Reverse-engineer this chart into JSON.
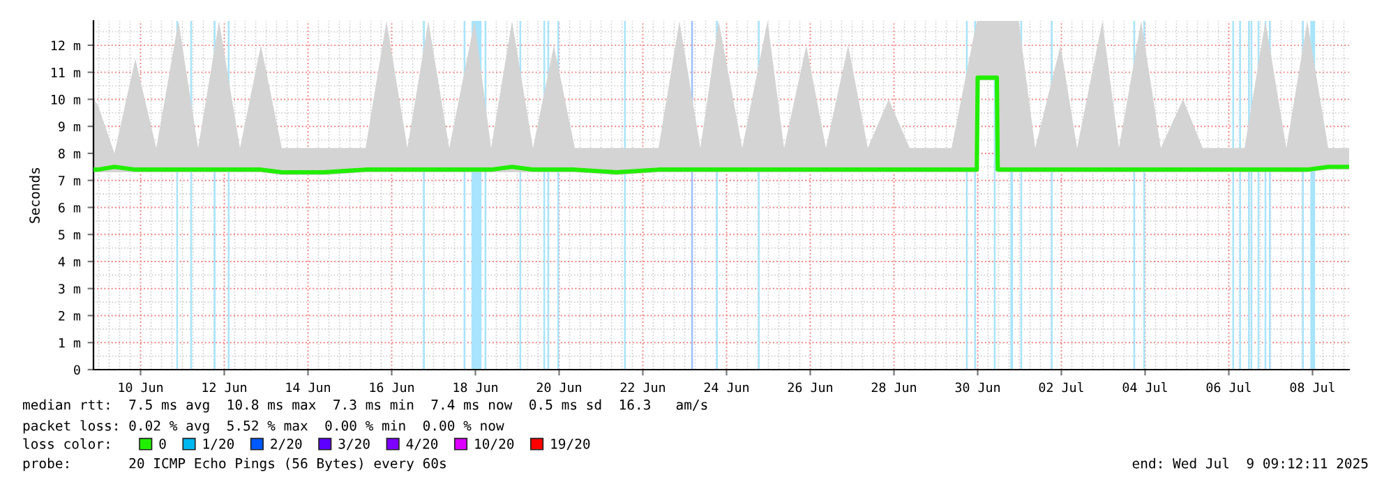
{
  "chart_data": {
    "type": "line",
    "ylabel": "Seconds",
    "legend_title": "loss color:",
    "legend": "bottom",
    "grid": true,
    "line_style": "solid",
    "marker": "none",
    "xlim": [
      "2025-06-08T21:00",
      "2025-07-08T21:00"
    ],
    "xticks": [
      {
        "value": "2025-06-10",
        "label": "10 Jun"
      },
      {
        "value": "2025-06-12",
        "label": "12 Jun"
      },
      {
        "value": "2025-06-14",
        "label": "14 Jun"
      },
      {
        "value": "2025-06-16",
        "label": "16 Jun"
      },
      {
        "value": "2025-06-18",
        "label": "18 Jun"
      },
      {
        "value": "2025-06-20",
        "label": "20 Jun"
      },
      {
        "value": "2025-06-22",
        "label": "22 Jun"
      },
      {
        "value": "2025-06-24",
        "label": "24 Jun"
      },
      {
        "value": "2025-06-26",
        "label": "26 Jun"
      },
      {
        "value": "2025-06-28",
        "label": "28 Jun"
      },
      {
        "value": "2025-06-30",
        "label": "30 Jun"
      },
      {
        "value": "2025-07-02",
        "label": "02 Jul"
      },
      {
        "value": "2025-07-04",
        "label": "04 Jul"
      },
      {
        "value": "2025-07-06",
        "label": "06 Jul"
      },
      {
        "value": "2025-07-08",
        "label": "08 Jul"
      }
    ],
    "ylim": [
      0,
      12.9
    ],
    "yticks": [
      0,
      {
        "value": 1,
        "label": "1 m"
      },
      {
        "value": 2,
        "label": "2 m"
      },
      {
        "value": 3,
        "label": "3 m"
      },
      {
        "value": 4,
        "label": "4 m"
      },
      {
        "value": 5,
        "label": "5 m"
      },
      {
        "value": 6,
        "label": "6 m"
      },
      {
        "value": 7,
        "label": "7 m"
      },
      {
        "value": 8,
        "label": "8 m"
      },
      {
        "value": 9,
        "label": "9 m"
      },
      {
        "value": 10,
        "label": "10 m"
      },
      {
        "value": 11,
        "label": "11 m"
      },
      {
        "value": 12,
        "label": "12 m"
      }
    ],
    "series": [
      {
        "name": "0",
        "color": "#22ee00",
        "x": [
          "2025-06-08T21:00",
          "2025-06-08T23:30",
          "2025-06-09T09:00",
          "2025-06-09T21:00",
          "2025-06-10T09:00",
          "2025-06-10T21:45",
          "2025-06-11T09:00",
          "2025-06-11T21:00",
          "2025-06-12T09:00",
          "2025-06-12T21:00",
          "2025-06-13T09:00",
          "2025-06-14T09:00",
          "2025-06-15T09:00",
          "2025-06-15T21:00",
          "2025-06-16T09:00",
          "2025-06-16T21:00",
          "2025-06-17T09:00",
          "2025-06-17T23:30",
          "2025-06-18T09:00",
          "2025-06-18T21:00",
          "2025-06-19T09:00",
          "2025-06-19T21:00",
          "2025-06-20T09:00",
          "2025-06-21T09:00",
          "2025-06-22T09:00",
          "2025-06-22T21:00",
          "2025-06-23T09:00",
          "2025-06-23T19:30",
          "2025-06-24T09:00",
          "2025-06-24T23:30",
          "2025-06-25T09:00",
          "2025-06-25T21:45",
          "2025-06-26T09:00",
          "2025-06-26T21:45",
          "2025-06-27T09:00",
          "2025-06-27T21:00",
          "2025-06-28T09:00",
          "2025-06-29T09:00",
          "2025-06-29T23:30",
          "2025-06-30T00:00",
          "2025-06-30T11:00",
          "2025-06-30T11:30",
          "2025-06-30T23:30",
          "2025-07-01T09:00",
          "2025-07-01T23:30",
          "2025-07-02T09:00",
          "2025-07-02T23:30",
          "2025-07-03T09:00",
          "2025-07-03T21:45",
          "2025-07-04T09:00",
          "2025-07-04T21:45",
          "2025-07-05T09:00",
          "2025-07-06T09:00",
          "2025-07-06T21:00",
          "2025-07-07T09:00",
          "2025-07-07T21:00",
          "2025-07-08T09:00",
          "2025-07-08T21:00"
        ],
        "values": [
          7.4,
          7.4,
          7.5,
          7.4,
          7.4,
          7.4,
          7.4,
          7.4,
          7.4,
          7.4,
          7.3,
          7.3,
          7.4,
          7.4,
          7.4,
          7.4,
          7.4,
          7.4,
          7.4,
          7.5,
          7.4,
          7.4,
          7.4,
          7.3,
          7.4,
          7.4,
          7.4,
          7.4,
          7.4,
          7.4,
          7.4,
          7.4,
          7.4,
          7.4,
          7.4,
          7.4,
          7.4,
          7.4,
          7.4,
          10.8,
          10.8,
          7.4,
          7.4,
          7.4,
          7.4,
          7.4,
          7.4,
          7.4,
          7.4,
          7.4,
          7.4,
          7.4,
          7.4,
          7.4,
          7.4,
          7.4,
          7.5,
          7.5
        ],
        "lower": [
          7.3,
          7.3,
          7.3,
          7.3,
          7.3,
          7.3,
          7.3,
          7.3,
          7.3,
          7.3,
          7.2,
          7.2,
          7.3,
          7.3,
          7.3,
          7.3,
          7.3,
          7.3,
          7.3,
          7.3,
          7.3,
          7.3,
          7.3,
          7.2,
          7.3,
          7.3,
          7.3,
          7.3,
          7.3,
          7.3,
          7.3,
          7.3,
          7.3,
          7.3,
          7.3,
          7.3,
          7.3,
          7.3,
          7.3,
          10.7,
          10.7,
          7.3,
          7.3,
          7.3,
          7.3,
          7.3,
          7.3,
          7.3,
          7.3,
          7.3,
          7.3,
          7.3,
          7.3,
          7.3,
          7.3,
          7.3,
          7.4,
          7.4
        ],
        "upper": [
          10.0,
          9.8,
          8.0,
          11.5,
          8.2,
          12.9,
          8.2,
          12.9,
          8.2,
          12.0,
          8.2,
          8.2,
          8.2,
          12.9,
          8.2,
          12.9,
          8.2,
          12.9,
          8.2,
          12.9,
          8.2,
          12.0,
          8.2,
          8.2,
          8.2,
          12.9,
          8.2,
          12.9,
          8.2,
          12.9,
          8.2,
          12.0,
          8.2,
          12.0,
          8.2,
          10.0,
          8.2,
          8.2,
          12.9,
          12.9,
          12.9,
          12.9,
          12.9,
          8.2,
          12.0,
          8.2,
          12.9,
          8.2,
          12.9,
          8.2,
          10.0,
          8.2,
          8.2,
          12.9,
          8.2,
          12.9,
          8.2,
          8.2
        ]
      },
      {
        "name": "1/20",
        "color": "#00b7f0"
      },
      {
        "name": "2/20",
        "color": "#0059ff"
      },
      {
        "name": "3/20",
        "color": "#5e00ff"
      },
      {
        "name": "4/20",
        "color": "#7e00ff"
      },
      {
        "name": "10/20",
        "color": "#dd00ff"
      },
      {
        "name": "19/20",
        "color": "#ff0000"
      }
    ],
    "bands": [
      {
        "axis": "x",
        "from": "2025-06-10T20:30",
        "to": "2025-06-10T21:30",
        "color": "#a8e4fb"
      },
      {
        "axis": "x",
        "from": "2025-06-11T04:30",
        "to": "2025-06-11T05:30",
        "color": "#a8e4fb"
      },
      {
        "axis": "x",
        "from": "2025-06-11T18:00",
        "to": "2025-06-11T19:00",
        "color": "#a8e4fb"
      },
      {
        "axis": "x",
        "from": "2025-06-12T02:00",
        "to": "2025-06-12T03:00",
        "color": "#a8e4fb"
      },
      {
        "axis": "x",
        "from": "2025-06-16T18:00",
        "to": "2025-06-16T19:00",
        "color": "#a8e4fb"
      },
      {
        "axis": "x",
        "from": "2025-06-17T17:15",
        "to": "2025-06-17T18:15",
        "color": "#a8e4fb"
      },
      {
        "axis": "x",
        "from": "2025-06-17T21:45",
        "to": "2025-06-18T03:30",
        "color": "#a8e4fb"
      },
      {
        "axis": "x",
        "from": "2025-06-18T05:15",
        "to": "2025-06-18T06:15",
        "color": "#a8e4fb"
      },
      {
        "axis": "x",
        "from": "2025-06-19T01:15",
        "to": "2025-06-19T02:15",
        "color": "#a8e4fb"
      },
      {
        "axis": "x",
        "from": "2025-06-19T15:00",
        "to": "2025-06-19T16:00",
        "color": "#a8e4fb"
      },
      {
        "axis": "x",
        "from": "2025-06-19T17:15",
        "to": "2025-06-19T18:15",
        "color": "#a8e4fb"
      },
      {
        "axis": "x",
        "from": "2025-06-19T23:00",
        "to": "2025-06-20T00:00",
        "color": "#a8e4fb"
      },
      {
        "axis": "x",
        "from": "2025-06-21T13:15",
        "to": "2025-06-21T14:15",
        "color": "#a8e4fb"
      },
      {
        "axis": "x",
        "from": "2025-06-23T03:45",
        "to": "2025-06-23T04:45",
        "color": "#9cc0f8"
      },
      {
        "axis": "x",
        "from": "2025-06-23T18:00",
        "to": "2025-06-23T19:00",
        "color": "#a8e4fb"
      },
      {
        "axis": "x",
        "from": "2025-06-24T18:00",
        "to": "2025-06-24T19:00",
        "color": "#a8e4fb"
      },
      {
        "axis": "x",
        "from": "2025-06-29T17:15",
        "to": "2025-06-29T18:15",
        "color": "#a8e4fb"
      },
      {
        "axis": "x",
        "from": "2025-06-29T22:00",
        "to": "2025-06-29T23:00",
        "color": "#a8e4fb"
      },
      {
        "axis": "x",
        "from": "2025-06-30T09:15",
        "to": "2025-06-30T10:15",
        "color": "#a8e4fb"
      },
      {
        "axis": "x",
        "from": "2025-06-30T18:45",
        "to": "2025-06-30T20:15",
        "color": "#a8e4fb"
      },
      {
        "axis": "x",
        "from": "2025-07-01T00:30",
        "to": "2025-07-01T01:30",
        "color": "#a8e4fb"
      },
      {
        "axis": "x",
        "from": "2025-07-01T18:00",
        "to": "2025-07-01T19:00",
        "color": "#a8e4fb"
      },
      {
        "axis": "x",
        "from": "2025-07-03T17:15",
        "to": "2025-07-03T18:15",
        "color": "#a8e4fb"
      },
      {
        "axis": "x",
        "from": "2025-07-03T23:00",
        "to": "2025-07-04T00:00",
        "color": "#a8e4fb"
      },
      {
        "axis": "x",
        "from": "2025-07-06T02:00",
        "to": "2025-07-06T03:00",
        "color": "#a8e4fb"
      },
      {
        "axis": "x",
        "from": "2025-07-06T06:00",
        "to": "2025-07-06T07:00",
        "color": "#a8e4fb"
      },
      {
        "axis": "x",
        "from": "2025-07-06T11:00",
        "to": "2025-07-06T12:00",
        "color": "#a8e4fb"
      },
      {
        "axis": "x",
        "from": "2025-07-06T12:30",
        "to": "2025-07-06T13:30",
        "color": "#a8e4fb"
      },
      {
        "axis": "x",
        "from": "2025-07-06T16:30",
        "to": "2025-07-06T17:30",
        "color": "#a8e4fb"
      },
      {
        "axis": "x",
        "from": "2025-07-06T20:30",
        "to": "2025-07-06T21:30",
        "color": "#a8e4fb"
      },
      {
        "axis": "x",
        "from": "2025-07-06T23:00",
        "to": "2025-07-07T00:00",
        "color": "#a8e4fb"
      },
      {
        "axis": "x",
        "from": "2025-07-07T18:00",
        "to": "2025-07-07T19:00",
        "color": "#a8e4fb"
      },
      {
        "axis": "x",
        "from": "2025-07-07T22:45",
        "to": "2025-07-08T01:30",
        "color": "#a8e4fb"
      }
    ],
    "annotations": [
      "median rtt:  7.5 ms avg  10.8 ms max  7.3 ms min  7.4 ms now  0.5 ms sd  16.3   am/s",
      "packet loss: 0.02 % avg  5.52 % max  0.00 % min  0.00 % now",
      "probe:       20 ICMP Echo Pings (56 Bytes) every 60s",
      "end: Wed Jul  9 09:12:11 2025"
    ]
  }
}
